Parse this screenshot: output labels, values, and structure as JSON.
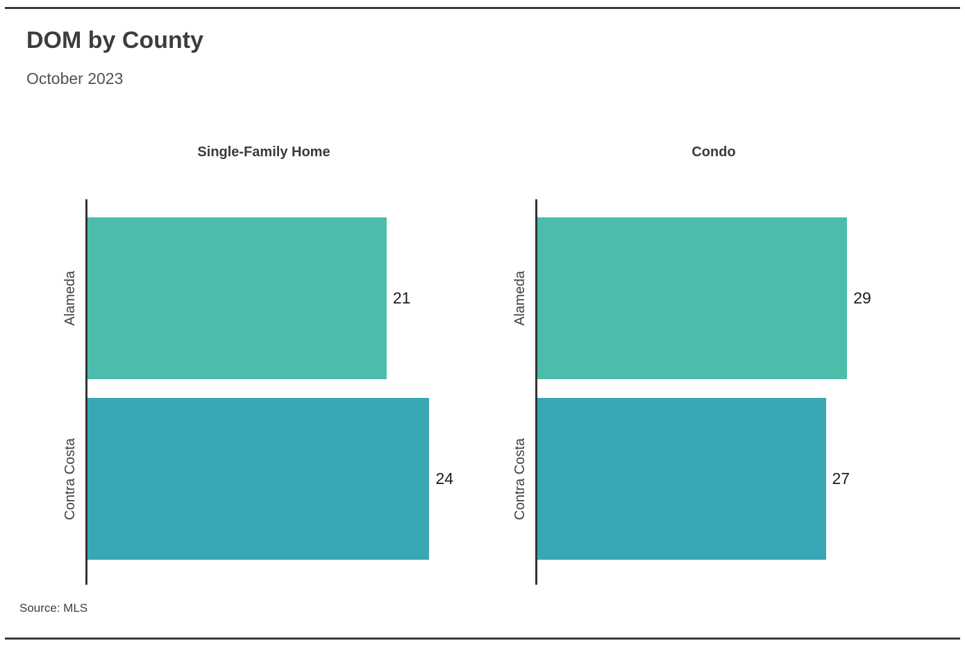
{
  "page": {
    "title": "DOM by County",
    "subtitle": "October 2023",
    "source": "Source:  MLS"
  },
  "colors": {
    "alameda_bar": "#4cbdaa",
    "contra_costa_bar": "#38a7b4",
    "axis": "#333333",
    "rule": "#3a3a3a",
    "title_text": "#3d3d3d",
    "value_text": "#1c1c1c"
  },
  "chart_data": [
    {
      "type": "bar",
      "orientation": "horizontal",
      "title": "Single-Family Home",
      "categories": [
        "Alameda",
        "Contra Costa"
      ],
      "values": [
        21,
        24
      ],
      "xlim": [
        0,
        27
      ],
      "bar_colors": [
        "#4cbdaa",
        "#38a7b4"
      ],
      "data_labels": true,
      "grid": false,
      "legend": false
    },
    {
      "type": "bar",
      "orientation": "horizontal",
      "title": "Condo",
      "categories": [
        "Alameda",
        "Contra Costa"
      ],
      "values": [
        29,
        27
      ],
      "xlim": [
        0,
        36
      ],
      "bar_colors": [
        "#4cbdaa",
        "#38a7b4"
      ],
      "data_labels": true,
      "grid": false,
      "legend": false
    }
  ]
}
